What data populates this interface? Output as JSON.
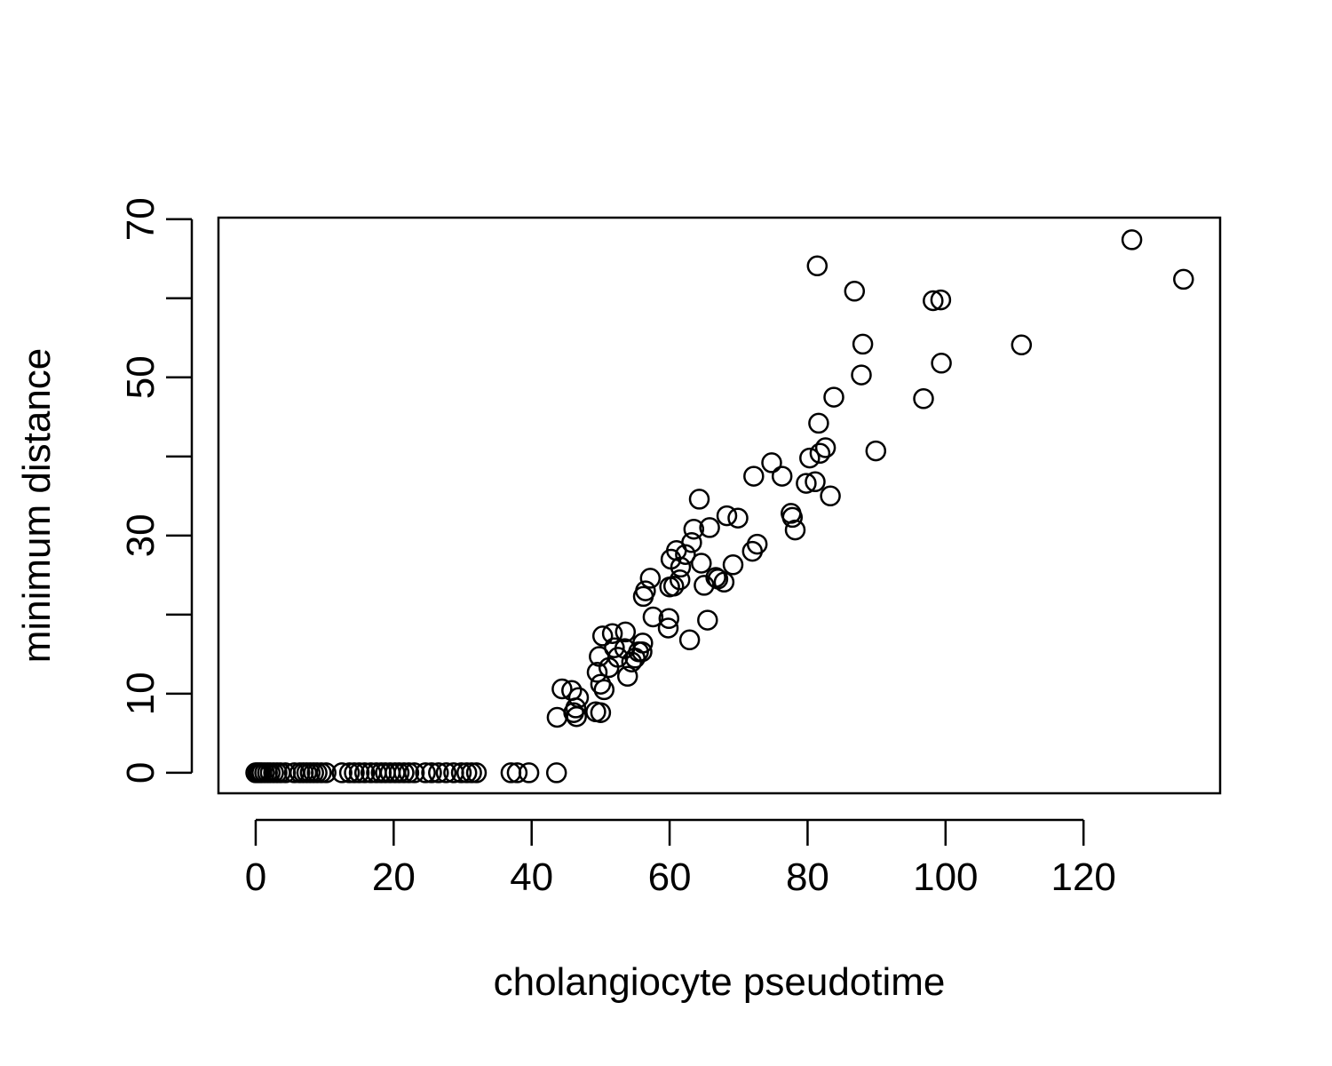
{
  "chart_data": {
    "type": "scatter",
    "title": "",
    "xlabel": "cholangiocyte pseudotime",
    "ylabel": "minimum distance",
    "xlim": [
      -5.4,
      139.8
    ],
    "ylim": [
      -2.6,
      70.2
    ],
    "x_ticks": [
      0,
      20,
      40,
      60,
      80,
      100,
      120
    ],
    "x_tick_labels": [
      "0",
      "20",
      "40",
      "60",
      "80",
      "100",
      "120"
    ],
    "y_ticks": [
      0,
      10,
      20,
      30,
      40,
      50,
      60,
      70
    ],
    "y_tick_labels": [
      "0",
      "10",
      "",
      "30",
      "",
      "50",
      "",
      "70"
    ],
    "grid": false,
    "legend": "none",
    "marker": "open-circle",
    "marker_color": "#000000",
    "series": [
      {
        "points": [
          [
            0.0,
            0.0
          ],
          [
            0.3,
            0.0
          ],
          [
            0.6,
            0.0
          ],
          [
            0.9,
            0.0
          ],
          [
            1.3,
            0.0
          ],
          [
            1.7,
            0.0
          ],
          [
            2.1,
            0.0
          ],
          [
            2.6,
            0.0
          ],
          [
            3.1,
            0.0
          ],
          [
            3.6,
            0.0
          ],
          [
            4.3,
            0.0
          ],
          [
            5.6,
            0.0
          ],
          [
            6.4,
            0.0
          ],
          [
            6.9,
            0.0
          ],
          [
            7.4,
            0.0
          ],
          [
            7.9,
            0.0
          ],
          [
            8.4,
            0.0
          ],
          [
            8.9,
            0.0
          ],
          [
            9.5,
            0.0
          ],
          [
            10.2,
            0.0
          ],
          [
            12.5,
            0.0
          ],
          [
            13.6,
            0.0
          ],
          [
            14.3,
            0.0
          ],
          [
            15.0,
            0.0
          ],
          [
            15.8,
            0.0
          ],
          [
            16.7,
            0.0
          ],
          [
            17.5,
            0.0
          ],
          [
            18.2,
            0.0
          ],
          [
            18.8,
            0.0
          ],
          [
            19.5,
            0.0
          ],
          [
            20.2,
            0.0
          ],
          [
            20.8,
            0.0
          ],
          [
            21.5,
            0.0
          ],
          [
            22.2,
            0.0
          ],
          [
            23.0,
            0.0
          ],
          [
            24.6,
            0.0
          ],
          [
            25.5,
            0.0
          ],
          [
            26.5,
            0.0
          ],
          [
            27.6,
            0.0
          ],
          [
            28.7,
            0.0
          ],
          [
            29.8,
            0.0
          ],
          [
            30.6,
            0.0
          ],
          [
            31.3,
            0.0
          ],
          [
            32.0,
            0.0
          ],
          [
            37.0,
            0.0
          ],
          [
            37.9,
            0.0
          ],
          [
            39.6,
            0.0
          ],
          [
            43.6,
            0.0
          ],
          [
            43.7,
            7.0
          ],
          [
            44.4,
            10.6
          ],
          [
            45.8,
            10.4
          ],
          [
            46.1,
            7.6
          ],
          [
            46.4,
            8.2
          ],
          [
            46.8,
            9.5
          ],
          [
            46.5,
            7.1
          ],
          [
            49.3,
            7.7
          ],
          [
            50.0,
            7.6
          ],
          [
            50.5,
            10.5
          ],
          [
            50.0,
            11.2
          ],
          [
            49.5,
            12.7
          ],
          [
            49.8,
            14.7
          ],
          [
            50.3,
            17.3
          ],
          [
            51.2,
            13.3
          ],
          [
            51.7,
            17.6
          ],
          [
            52.0,
            15.8
          ],
          [
            52.5,
            14.6
          ],
          [
            53.6,
            17.8
          ],
          [
            53.5,
            15.7
          ],
          [
            53.9,
            12.2
          ],
          [
            54.5,
            14.0
          ],
          [
            55.0,
            14.5
          ],
          [
            55.5,
            15.3
          ],
          [
            56.0,
            15.3
          ],
          [
            56.1,
            16.4
          ],
          [
            56.2,
            22.3
          ],
          [
            56.5,
            23.0
          ],
          [
            57.2,
            24.6
          ],
          [
            57.6,
            19.7
          ],
          [
            59.8,
            18.3
          ],
          [
            59.9,
            19.5
          ],
          [
            60.0,
            23.5
          ],
          [
            60.2,
            27.0
          ],
          [
            60.6,
            23.6
          ],
          [
            61.0,
            28.1
          ],
          [
            61.5,
            24.4
          ],
          [
            61.6,
            26.0
          ],
          [
            62.3,
            27.6
          ],
          [
            62.9,
            16.8
          ],
          [
            63.2,
            29.1
          ],
          [
            63.5,
            30.8
          ],
          [
            64.3,
            34.6
          ],
          [
            64.6,
            26.5
          ],
          [
            65.0,
            23.7
          ],
          [
            65.5,
            19.3
          ],
          [
            65.8,
            31.0
          ],
          [
            66.7,
            24.7
          ],
          [
            67.0,
            24.5
          ],
          [
            67.9,
            24.1
          ],
          [
            68.3,
            32.5
          ],
          [
            69.2,
            26.3
          ],
          [
            69.9,
            32.2
          ],
          [
            72.0,
            28.0
          ],
          [
            72.2,
            37.5
          ],
          [
            72.7,
            28.9
          ],
          [
            74.8,
            39.2
          ],
          [
            76.3,
            37.5
          ],
          [
            77.6,
            32.8
          ],
          [
            77.8,
            32.3
          ],
          [
            78.2,
            30.7
          ],
          [
            79.8,
            36.6
          ],
          [
            80.3,
            39.8
          ],
          [
            81.1,
            36.8
          ],
          [
            81.4,
            64.1
          ],
          [
            81.6,
            44.2
          ],
          [
            81.8,
            40.4
          ],
          [
            82.6,
            41.1
          ],
          [
            83.3,
            35.0
          ],
          [
            83.8,
            47.5
          ],
          [
            86.8,
            60.9
          ],
          [
            87.8,
            50.3
          ],
          [
            88.0,
            54.2
          ],
          [
            89.9,
            40.7
          ],
          [
            96.8,
            47.3
          ],
          [
            98.2,
            59.7
          ],
          [
            99.3,
            59.8
          ],
          [
            99.4,
            51.8
          ],
          [
            111.0,
            54.1
          ],
          [
            127.0,
            67.4
          ],
          [
            134.5,
            62.4
          ]
        ]
      }
    ]
  }
}
